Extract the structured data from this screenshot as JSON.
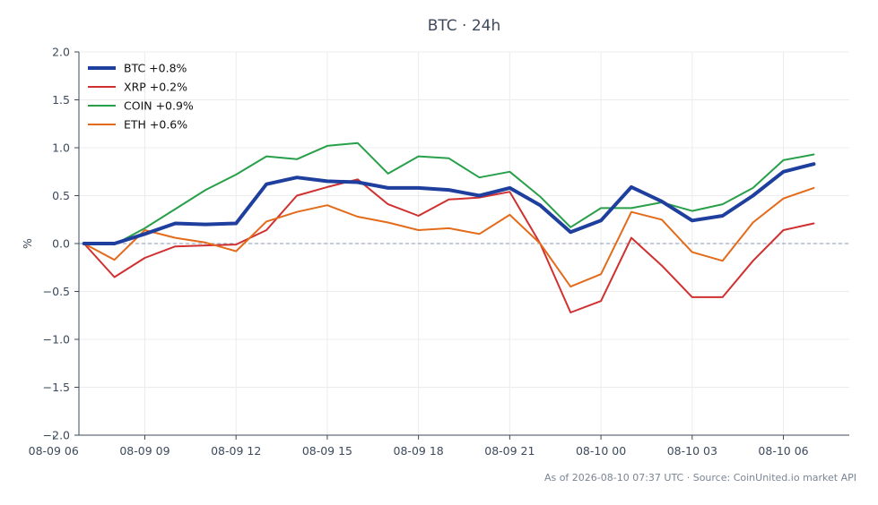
{
  "chart_data": {
    "type": "line",
    "title": "BTC · 24h",
    "ylabel": "%",
    "xlabel": "",
    "ylim": [
      -2.0,
      2.0
    ],
    "xlim": [
      "2026-08-09 06:50",
      "2026-08-10 08:10"
    ],
    "y_ticks": [
      -2.0,
      -1.5,
      -1.0,
      -0.5,
      0.0,
      0.5,
      1.0,
      1.5,
      2.0
    ],
    "y_tick_labels": [
      "−2.0",
      "−1.5",
      "−1.0",
      "−0.5",
      "0.0",
      "0.5",
      "1.0",
      "1.5",
      "2.0"
    ],
    "x_ticks": [
      "2026-08-09 06:00",
      "2026-08-09 09:00",
      "2026-08-09 12:00",
      "2026-08-09 15:00",
      "2026-08-09 18:00",
      "2026-08-09 21:00",
      "2026-08-10 00:00",
      "2026-08-10 03:00",
      "2026-08-10 06:00"
    ],
    "x_tick_labels": [
      "08-09 06",
      "08-09 09",
      "08-09 12",
      "08-09 15",
      "08-09 18",
      "08-09 21",
      "08-10 00",
      "08-10 03",
      "08-10 06"
    ],
    "grid": true,
    "reference_line": 0.0,
    "legend_position": "top-left",
    "x": [
      "2026-08-09 07:00",
      "2026-08-09 08:00",
      "2026-08-09 09:00",
      "2026-08-09 10:00",
      "2026-08-09 11:00",
      "2026-08-09 12:00",
      "2026-08-09 13:00",
      "2026-08-09 14:00",
      "2026-08-09 15:00",
      "2026-08-09 16:00",
      "2026-08-09 17:00",
      "2026-08-09 18:00",
      "2026-08-09 19:00",
      "2026-08-09 20:00",
      "2026-08-09 21:00",
      "2026-08-09 22:00",
      "2026-08-09 23:00",
      "2026-08-10 00:00",
      "2026-08-10 01:00",
      "2026-08-10 02:00",
      "2026-08-10 03:00",
      "2026-08-10 04:00",
      "2026-08-10 05:00",
      "2026-08-10 06:00",
      "2026-08-10 07:00"
    ],
    "series": [
      {
        "name": "BTC +0.8%",
        "color": "#1f3f9e",
        "emphasis": true,
        "values": [
          0.0,
          0.0,
          0.1,
          0.21,
          0.2,
          0.21,
          0.62,
          0.69,
          0.65,
          0.64,
          0.58,
          0.58,
          0.56,
          0.5,
          0.58,
          0.4,
          0.12,
          0.24,
          0.59,
          0.44,
          0.24,
          0.29,
          0.5,
          0.75,
          0.83
        ]
      },
      {
        "name": "XRP +0.2%",
        "color": "#d03030",
        "values": [
          0.0,
          -0.35,
          -0.15,
          -0.03,
          -0.02,
          -0.01,
          0.14,
          0.5,
          0.59,
          0.67,
          0.41,
          0.29,
          0.46,
          0.48,
          0.54,
          0.0,
          -0.72,
          -0.6,
          0.06,
          -0.23,
          -0.56,
          -0.56,
          -0.18,
          0.14,
          0.21
        ]
      },
      {
        "name": "COIN +0.9%",
        "color": "#28a04a",
        "values": [
          0.01,
          -0.01,
          0.16,
          0.36,
          0.56,
          0.72,
          0.91,
          0.88,
          1.02,
          1.05,
          0.73,
          0.91,
          0.89,
          0.69,
          0.75,
          0.49,
          0.17,
          0.37,
          0.37,
          0.43,
          0.34,
          0.41,
          0.58,
          0.87,
          0.93
        ]
      },
      {
        "name": "ETH +0.6%",
        "color": "#e36b1a",
        "values": [
          0.0,
          -0.17,
          0.14,
          0.06,
          0.01,
          -0.08,
          0.23,
          0.33,
          0.4,
          0.28,
          0.22,
          0.14,
          0.16,
          0.1,
          0.3,
          0.0,
          -0.45,
          -0.32,
          0.33,
          0.25,
          -0.09,
          -0.18,
          0.22,
          0.47,
          0.58
        ]
      }
    ],
    "footer": "As of 2026-08-10 07:37 UTC · Source: CoinUnited.io market API"
  }
}
